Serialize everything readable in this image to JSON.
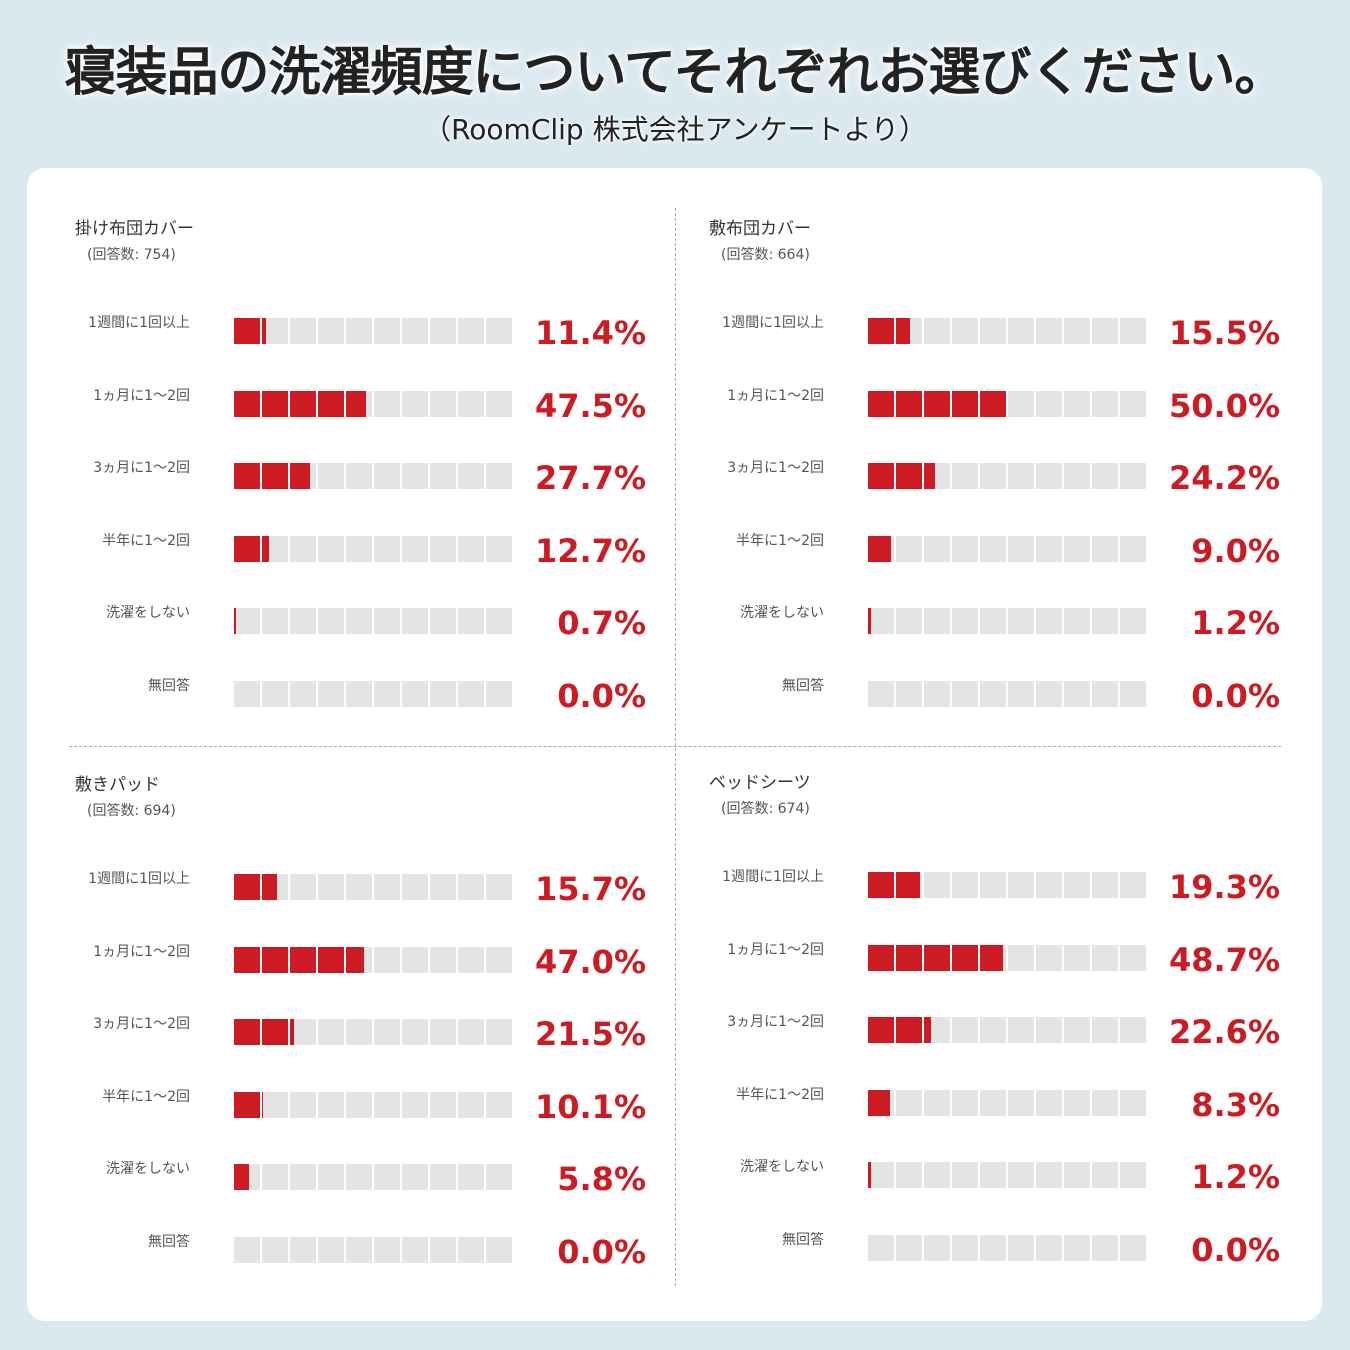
{
  "title": "寝装品の洗濯頻度についてそれぞれお選びください。",
  "subtitle": "（RoomClip 株式会社アンケートより）",
  "colors": {
    "fill": "#cc1b22",
    "empty": "#e4e4e4",
    "text": "#cc1b22"
  },
  "chart_data": [
    {
      "type": "bar",
      "title": "掛け布団カバー",
      "respondents": "(回答数: 754)",
      "categories": [
        "1週間に1回以上",
        "1ヵ月に1〜2回",
        "3ヵ月に1〜2回",
        "半年に1〜2回",
        "洗濯をしない",
        "無回答"
      ],
      "values": [
        11.4,
        47.5,
        27.7,
        12.7,
        0.7,
        0.0
      ],
      "labels": [
        "11.4%",
        "47.5%",
        "27.7%",
        "12.7%",
        "0.7%",
        "0.0%"
      ],
      "ylim": [
        0,
        100
      ]
    },
    {
      "type": "bar",
      "title": "敷布団カバー",
      "respondents": "(回答数: 664)",
      "categories": [
        "1週間に1回以上",
        "1ヵ月に1〜2回",
        "3ヵ月に1〜2回",
        "半年に1〜2回",
        "洗濯をしない",
        "無回答"
      ],
      "values": [
        15.5,
        50.0,
        24.2,
        9.0,
        1.2,
        0.0
      ],
      "labels": [
        "15.5%",
        "50.0%",
        "24.2%",
        "9.0%",
        "1.2%",
        "0.0%"
      ],
      "ylim": [
        0,
        100
      ]
    },
    {
      "type": "bar",
      "title": "敷きパッド",
      "respondents": "(回答数: 694)",
      "categories": [
        "1週間に1回以上",
        "1ヵ月に1〜2回",
        "3ヵ月に1〜2回",
        "半年に1〜2回",
        "洗濯をしない",
        "無回答"
      ],
      "values": [
        15.7,
        47.0,
        21.5,
        10.1,
        5.8,
        0.0
      ],
      "labels": [
        "15.7%",
        "47.0%",
        "21.5%",
        "10.1%",
        "5.8%",
        "0.0%"
      ],
      "ylim": [
        0,
        100
      ]
    },
    {
      "type": "bar",
      "title": "ベッドシーツ",
      "respondents": "(回答数: 674)",
      "categories": [
        "1週間に1回以上",
        "1ヵ月に1〜2回",
        "3ヵ月に1〜2回",
        "半年に1〜2回",
        "洗濯をしない",
        "無回答"
      ],
      "values": [
        19.3,
        48.7,
        22.6,
        8.3,
        1.2,
        0.0
      ],
      "labels": [
        "19.3%",
        "48.7%",
        "22.6%",
        "8.3%",
        "1.2%",
        "0.0%"
      ],
      "ylim": [
        0,
        100
      ]
    }
  ]
}
